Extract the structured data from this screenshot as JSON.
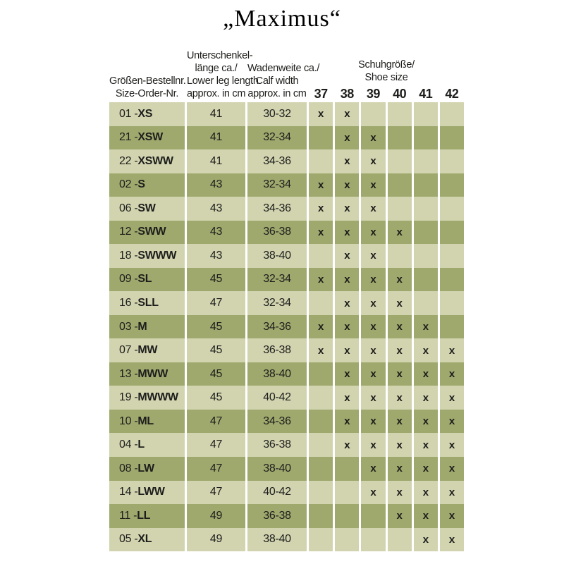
{
  "title": "„Maximus“",
  "colors": {
    "row_light": "#d2d4b0",
    "row_dark": "#9fa96e",
    "text": "#1d1d1b",
    "background": "#ffffff"
  },
  "table": {
    "x_mark": "x",
    "headers": {
      "order": [
        "Größen-Bestellnr.",
        "Size-Order-Nr."
      ],
      "leg": [
        "Unterschenkel-",
        "länge ca./",
        "Lower leg length",
        "approx. in cm"
      ],
      "calf": [
        "Wadenweite ca./",
        "Calf width",
        "approx. in cm"
      ],
      "shoe_group": [
        "Schuhgröße/",
        "Shoe size"
      ],
      "shoe_sizes": [
        "37",
        "38",
        "39",
        "40",
        "41",
        "42"
      ]
    },
    "rows": [
      {
        "order_nr": "01",
        "size_code": "XS",
        "leg_length": "41",
        "calf_width": "30-32",
        "shoe_sizes": [
          "37",
          "38"
        ]
      },
      {
        "order_nr": "21",
        "size_code": "XSW",
        "leg_length": "41",
        "calf_width": "32-34",
        "shoe_sizes": [
          "38",
          "39"
        ]
      },
      {
        "order_nr": "22",
        "size_code": "XSWW",
        "leg_length": "41",
        "calf_width": "34-36",
        "shoe_sizes": [
          "38",
          "39"
        ]
      },
      {
        "order_nr": "02",
        "size_code": "S",
        "leg_length": "43",
        "calf_width": "32-34",
        "shoe_sizes": [
          "37",
          "38",
          "39"
        ]
      },
      {
        "order_nr": "06",
        "size_code": "SW",
        "leg_length": "43",
        "calf_width": "34-36",
        "shoe_sizes": [
          "37",
          "38",
          "39"
        ]
      },
      {
        "order_nr": "12",
        "size_code": "SWW",
        "leg_length": "43",
        "calf_width": "36-38",
        "shoe_sizes": [
          "37",
          "38",
          "39",
          "40"
        ]
      },
      {
        "order_nr": "18",
        "size_code": "SWWW",
        "leg_length": "43",
        "calf_width": "38-40",
        "shoe_sizes": [
          "38",
          "39"
        ]
      },
      {
        "order_nr": "09",
        "size_code": "SL",
        "leg_length": "45",
        "calf_width": "32-34",
        "shoe_sizes": [
          "37",
          "38",
          "39",
          "40"
        ]
      },
      {
        "order_nr": "16",
        "size_code": "SLL",
        "leg_length": "47",
        "calf_width": "32-34",
        "shoe_sizes": [
          "38",
          "39",
          "40"
        ]
      },
      {
        "order_nr": "03",
        "size_code": "M",
        "leg_length": "45",
        "calf_width": "34-36",
        "shoe_sizes": [
          "37",
          "38",
          "39",
          "40",
          "41"
        ]
      },
      {
        "order_nr": "07",
        "size_code": "MW",
        "leg_length": "45",
        "calf_width": "36-38",
        "shoe_sizes": [
          "37",
          "38",
          "39",
          "40",
          "41",
          "42"
        ]
      },
      {
        "order_nr": "13",
        "size_code": "MWW",
        "leg_length": "45",
        "calf_width": "38-40",
        "shoe_sizes": [
          "38",
          "39",
          "40",
          "41",
          "42"
        ]
      },
      {
        "order_nr": "19",
        "size_code": "MWWW",
        "leg_length": "45",
        "calf_width": "40-42",
        "shoe_sizes": [
          "38",
          "39",
          "40",
          "41",
          "42"
        ]
      },
      {
        "order_nr": "10",
        "size_code": "ML",
        "leg_length": "47",
        "calf_width": "34-36",
        "shoe_sizes": [
          "38",
          "39",
          "40",
          "41",
          "42"
        ]
      },
      {
        "order_nr": "04",
        "size_code": "L",
        "leg_length": "47",
        "calf_width": "36-38",
        "shoe_sizes": [
          "38",
          "39",
          "40",
          "41",
          "42"
        ]
      },
      {
        "order_nr": "08",
        "size_code": "LW",
        "leg_length": "47",
        "calf_width": "38-40",
        "shoe_sizes": [
          "39",
          "40",
          "41",
          "42"
        ]
      },
      {
        "order_nr": "14",
        "size_code": "LWW",
        "leg_length": "47",
        "calf_width": "40-42",
        "shoe_sizes": [
          "39",
          "40",
          "41",
          "42"
        ]
      },
      {
        "order_nr": "11",
        "size_code": "LL",
        "leg_length": "49",
        "calf_width": "36-38",
        "shoe_sizes": [
          "40",
          "41",
          "42"
        ]
      },
      {
        "order_nr": "05",
        "size_code": "XL",
        "leg_length": "49",
        "calf_width": "38-40",
        "shoe_sizes": [
          "41",
          "42"
        ]
      }
    ]
  }
}
